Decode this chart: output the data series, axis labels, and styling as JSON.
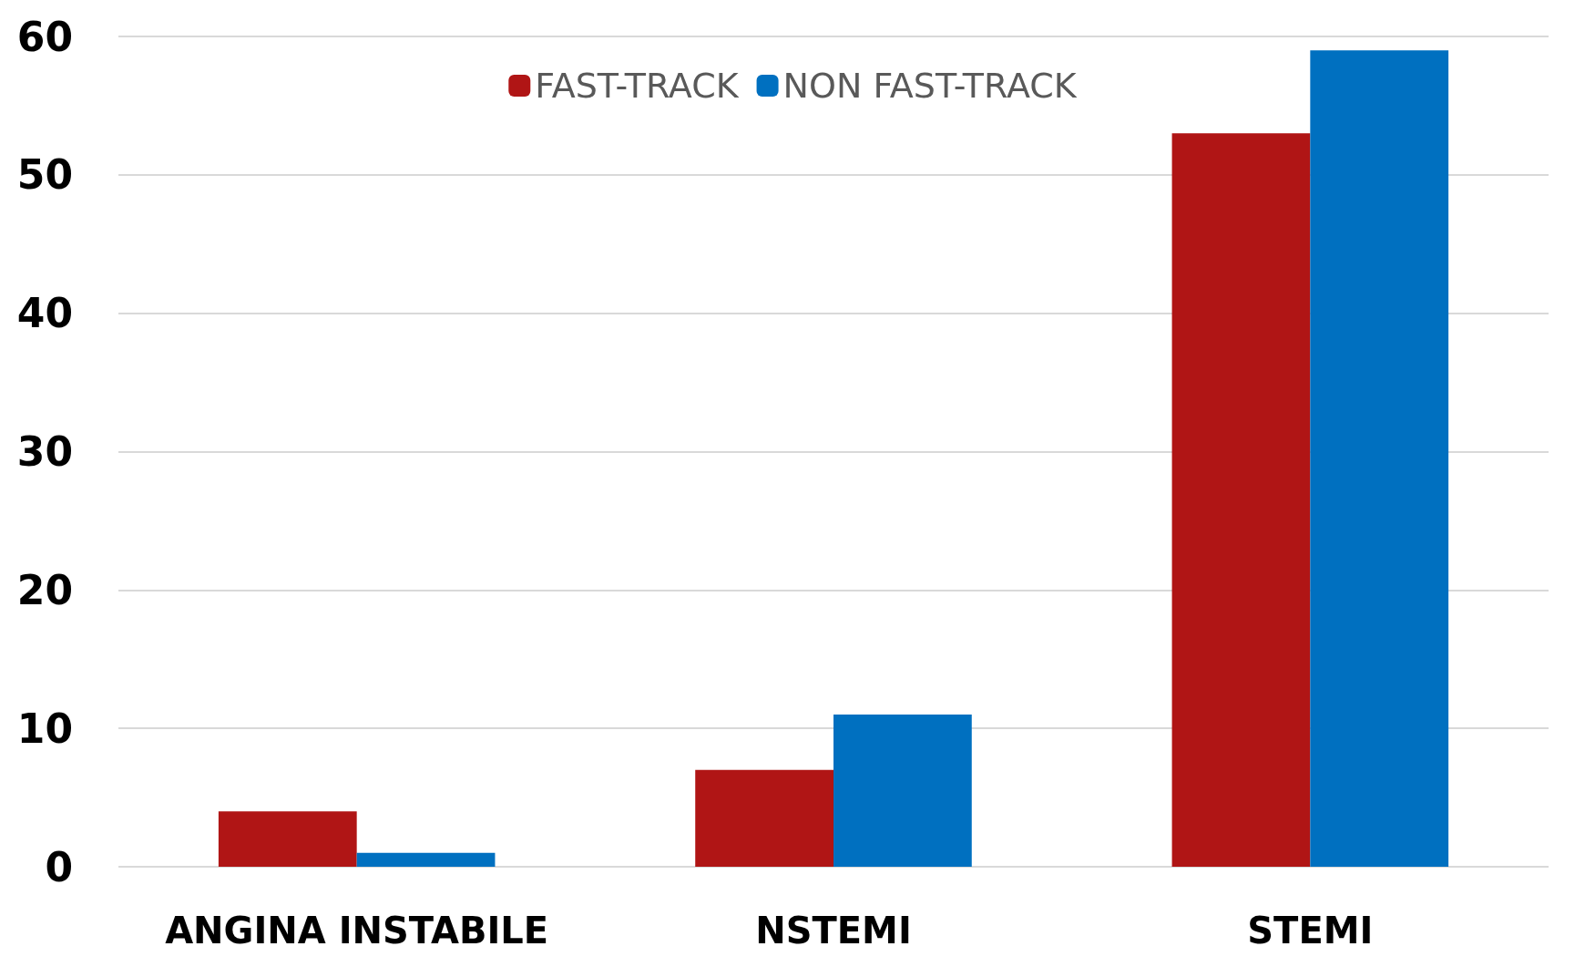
{
  "chart_data": {
    "type": "bar",
    "categories": [
      "ANGINA INSTABILE",
      "NSTEMI",
      "STEMI"
    ],
    "series": [
      {
        "name": "FAST-TRACK",
        "color": "#b01515",
        "values": [
          4,
          7,
          53
        ]
      },
      {
        "name": "NON FAST-TRACK",
        "color": "#0070c0",
        "values": [
          1,
          11,
          59
        ]
      }
    ],
    "ylim": [
      0,
      60
    ],
    "yticks": [
      0,
      10,
      20,
      30,
      40,
      50,
      60
    ],
    "grid": "y",
    "legend": "top"
  }
}
